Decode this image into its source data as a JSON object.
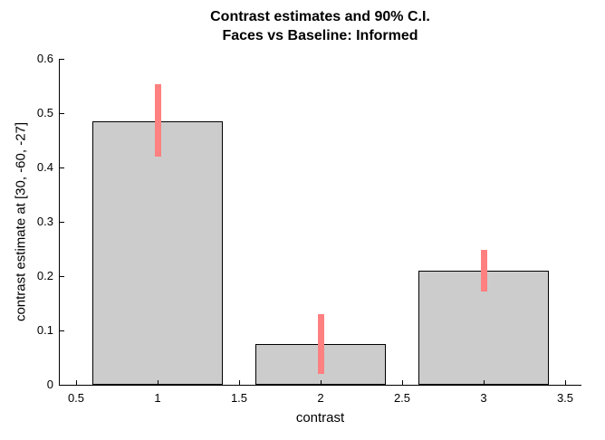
{
  "colors": {
    "background": "#ffffff",
    "text": "#000000",
    "bar_fill": "#cccccc",
    "bar_edge": "#000000",
    "error_bar": "#ff8080",
    "axis": "#000000"
  },
  "chart_data": {
    "type": "bar",
    "title": "Contrast estimates and 90% C.I.",
    "subtitle": "Faces vs Baseline: Informed",
    "xlabel": "contrast",
    "ylabel": "contrast estimate at [30, -60, -27]",
    "ci_level": "90%",
    "categories": [
      1,
      2,
      3
    ],
    "values": [
      0.485,
      0.075,
      0.21
    ],
    "ci_lower": [
      0.42,
      0.02,
      0.172
    ],
    "ci_upper": [
      0.553,
      0.13,
      0.248
    ],
    "bar_width": 0.8,
    "xlim": [
      0.4,
      3.6
    ],
    "ylim": [
      0,
      0.6
    ],
    "xticks": [
      "0.5",
      "1",
      "1.5",
      "2",
      "2.5",
      "3",
      "3.5"
    ],
    "xtick_values": [
      0.5,
      1,
      1.5,
      2,
      2.5,
      3,
      3.5
    ],
    "yticks": [
      "0",
      "0.1",
      "0.2",
      "0.3",
      "0.4",
      "0.5",
      "0.6"
    ],
    "ytick_values": [
      0,
      0.1,
      0.2,
      0.3,
      0.4,
      0.5,
      0.6
    ],
    "grid": false,
    "legend": null
  }
}
